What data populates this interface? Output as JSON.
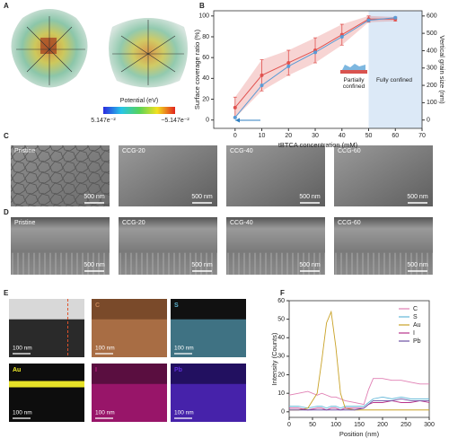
{
  "panels": {
    "labels": [
      "A",
      "B",
      "C",
      "D",
      "E",
      "F"
    ]
  },
  "panel_a": {
    "colorbar_title": "Potential (eV)",
    "colorbar_min": "5.147e⁻²",
    "colorbar_max": "−5.147e⁻²"
  },
  "sem": {
    "samples": [
      "Pristine",
      "CCG-20",
      "CCG-40",
      "CCG-60"
    ],
    "scale_bar": "500 nm"
  },
  "eds": {
    "elements": [
      "C",
      "S",
      "Au",
      "I",
      "Pb"
    ],
    "scale_bar": "100 nm"
  },
  "chart_data": [
    {
      "type": "line",
      "x": [
        0,
        10,
        20,
        30,
        40,
        50,
        60
      ],
      "xlabel": "tBTCA concentration (mM)",
      "ylabel": "Surface coverage ratio (%)",
      "y2label": "Vertical grain size (nm)",
      "xlim": [
        -8,
        70
      ],
      "xticks": [
        0,
        10,
        20,
        30,
        40,
        50,
        60,
        70
      ],
      "ylim": [
        -8,
        105
      ],
      "yticks": [
        0,
        20,
        40,
        60,
        80,
        100
      ],
      "y2lim": [
        -48,
        630
      ],
      "y2ticks": [
        0,
        100,
        200,
        300,
        400,
        500,
        600
      ],
      "shaded_range": [
        50,
        70
      ],
      "annotations": [
        "Partially confined",
        "Fully confined"
      ],
      "series": [
        {
          "color": "#e0524f",
          "values": [
            12,
            43,
            55,
            67,
            82,
            97,
            97
          ],
          "errors": [
            10,
            15,
            12,
            12,
            10,
            3,
            2
          ]
        },
        {
          "color": "#5a9bd5",
          "axis": "y2",
          "values": [
            15,
            200,
            310,
            390,
            480,
            575,
            590
          ]
        }
      ]
    },
    {
      "type": "line",
      "x": [
        0,
        20,
        40,
        60,
        70,
        80,
        90,
        100,
        110,
        120,
        140,
        160,
        170,
        180,
        200,
        220,
        240,
        260,
        280,
        300
      ],
      "xlabel": "Position (nm)",
      "ylabel": "Intensity (Counts)",
      "xlim": [
        0,
        300
      ],
      "xticks": [
        0,
        50,
        100,
        150,
        200,
        250,
        300
      ],
      "ylim": [
        -3,
        60
      ],
      "yticks": [
        0,
        10,
        20,
        30,
        40,
        50,
        60
      ],
      "series": [
        {
          "name": "C",
          "color": "#e07fb3",
          "values": [
            9,
            10,
            11,
            9,
            10,
            9,
            8,
            8,
            7,
            6,
            5,
            4,
            12,
            18,
            18,
            17,
            17,
            16,
            15,
            15
          ]
        },
        {
          "name": "S",
          "color": "#63b7d8",
          "values": [
            3,
            3,
            2,
            3,
            3,
            2,
            3,
            3,
            2,
            3,
            3,
            3,
            5,
            7,
            8,
            7,
            8,
            7,
            7,
            7
          ]
        },
        {
          "name": "Au",
          "color": "#c9a227",
          "values": [
            1,
            1,
            2,
            10,
            28,
            48,
            54,
            35,
            10,
            2,
            1,
            1,
            1,
            1,
            1,
            1,
            1,
            1,
            1,
            1
          ]
        },
        {
          "name": "I",
          "color": "#b8338a",
          "values": [
            2,
            2,
            1,
            2,
            2,
            1,
            2,
            2,
            1,
            2,
            2,
            2,
            4,
            5,
            5,
            6,
            5,
            5,
            6,
            5
          ]
        },
        {
          "name": "Pb",
          "color": "#6a51a3",
          "values": [
            1,
            1,
            1,
            1,
            1,
            1,
            1,
            1,
            1,
            1,
            1,
            2,
            4,
            6,
            6,
            6,
            7,
            6,
            6,
            6
          ]
        }
      ]
    }
  ]
}
